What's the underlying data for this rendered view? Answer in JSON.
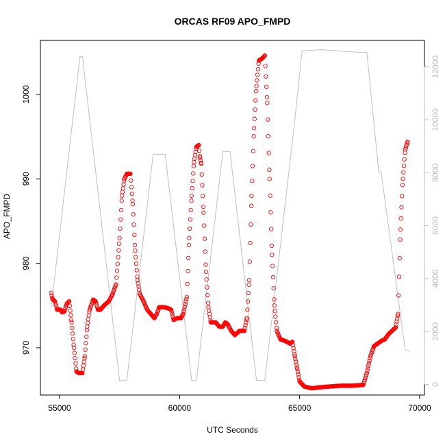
{
  "chart_data": {
    "type": "scatter",
    "title": "ORCAS RF09 APO_FMPD",
    "xlabel": "UTC Seconds",
    "ylabel": "APO_FMPD",
    "xlim": [
      54200,
      70200
    ],
    "ylim": [
      964.4,
      1006.4
    ],
    "y2lim": [
      -400,
      13000
    ],
    "x_ticks": [
      55000,
      60000,
      65000,
      70000
    ],
    "y_ticks": [
      970,
      980,
      990,
      1000
    ],
    "y2_ticks": [
      0,
      2000,
      4000,
      6000,
      8000,
      10000,
      12000
    ],
    "grid": false,
    "legend": "none",
    "colors": {
      "series_points": "#ff0000",
      "altitude_line": "#bebebe",
      "axes": "#000000",
      "right_axis": "#bebebe"
    },
    "series": [
      {
        "marker": "open-circle",
        "keypoints": [
          [
            54650,
            976.5
          ],
          [
            54700,
            975.8
          ],
          [
            54800,
            975.5
          ],
          [
            54900,
            974.5
          ],
          [
            55050,
            974.5
          ],
          [
            55100,
            974.2
          ],
          [
            55200,
            974.3
          ],
          [
            55300,
            975.2
          ],
          [
            55400,
            975.5
          ],
          [
            55500,
            973.0
          ],
          [
            55600,
            970.0
          ],
          [
            55700,
            967.2
          ],
          [
            55800,
            967.0
          ],
          [
            55950,
            967.0
          ],
          [
            56050,
            969.0
          ],
          [
            56150,
            972.5
          ],
          [
            56250,
            974.5
          ],
          [
            56400,
            975.7
          ],
          [
            56500,
            975.5
          ],
          [
            56600,
            974.5
          ],
          [
            56700,
            974.5
          ],
          [
            56850,
            975.0
          ],
          [
            57050,
            975.5
          ],
          [
            57200,
            976.3
          ],
          [
            57350,
            977.5
          ],
          [
            57500,
            983.0
          ],
          [
            57600,
            988.0
          ],
          [
            57700,
            990.0
          ],
          [
            57800,
            990.6
          ],
          [
            57950,
            990.6
          ],
          [
            58050,
            987.0
          ],
          [
            58150,
            981.5
          ],
          [
            58250,
            978.0
          ],
          [
            58350,
            976.3
          ],
          [
            58500,
            975.5
          ],
          [
            58650,
            974.5
          ],
          [
            58800,
            974.0
          ],
          [
            58950,
            973.5
          ],
          [
            59050,
            974.0
          ],
          [
            59150,
            974.8
          ],
          [
            59350,
            974.8
          ],
          [
            59500,
            974.7
          ],
          [
            59650,
            974.5
          ],
          [
            59750,
            973.3
          ],
          [
            59900,
            973.5
          ],
          [
            60050,
            973.5
          ],
          [
            60150,
            974.0
          ],
          [
            60300,
            976.0
          ],
          [
            60400,
            983.0
          ],
          [
            60500,
            988.0
          ],
          [
            60600,
            992.0
          ],
          [
            60700,
            993.8
          ],
          [
            60800,
            994.0
          ],
          [
            60850,
            992.5
          ],
          [
            60900,
            991.8
          ],
          [
            61000,
            986.0
          ],
          [
            61100,
            979.0
          ],
          [
            61200,
            974.8
          ],
          [
            61300,
            973.0
          ],
          [
            61500,
            973.0
          ],
          [
            61650,
            972.5
          ],
          [
            61800,
            972.5
          ],
          [
            61900,
            973.0
          ],
          [
            62000,
            972.8
          ],
          [
            62150,
            972.0
          ],
          [
            62300,
            971.5
          ],
          [
            62500,
            972.0
          ],
          [
            62700,
            972.0
          ],
          [
            62800,
            973.5
          ],
          [
            62900,
            978.0
          ],
          [
            63000,
            988.0
          ],
          [
            63100,
            996.0
          ],
          [
            63200,
            1001.0
          ],
          [
            63300,
            1004.0
          ],
          [
            63450,
            1004.3
          ],
          [
            63550,
            1004.6
          ],
          [
            63650,
            999.0
          ],
          [
            63750,
            990.0
          ],
          [
            63850,
            981.0
          ],
          [
            63950,
            975.0
          ],
          [
            64050,
            972.0
          ],
          [
            64200,
            971.0
          ],
          [
            64400,
            970.8
          ],
          [
            64600,
            970.5
          ],
          [
            64700,
            970.7
          ],
          [
            64800,
            969.0
          ],
          [
            64900,
            967.5
          ],
          [
            65000,
            966.0
          ],
          [
            65200,
            965.4
          ],
          [
            65500,
            965.2
          ],
          [
            65800,
            965.3
          ],
          [
            66200,
            965.4
          ],
          [
            66700,
            965.5
          ],
          [
            67200,
            965.5
          ],
          [
            67650,
            965.6
          ],
          [
            67800,
            967.0
          ],
          [
            67950,
            969.0
          ],
          [
            68100,
            970.2
          ],
          [
            68250,
            970.5
          ],
          [
            68400,
            970.8
          ],
          [
            68550,
            971.0
          ],
          [
            68700,
            971.6
          ],
          [
            68850,
            972.0
          ],
          [
            69000,
            972.4
          ],
          [
            69100,
            974.0
          ],
          [
            69200,
            984.0
          ],
          [
            69300,
            990.0
          ],
          [
            69400,
            993.5
          ],
          [
            69500,
            994.4
          ]
        ]
      },
      {
        "axis": "right",
        "line": true,
        "points": [
          [
            54650,
            2900
          ],
          [
            55850,
            12400
          ],
          [
            55950,
            12400
          ],
          [
            57500,
            150
          ],
          [
            57800,
            150
          ],
          [
            58900,
            8700
          ],
          [
            59400,
            8700
          ],
          [
            60500,
            150
          ],
          [
            60700,
            150
          ],
          [
            61800,
            8800
          ],
          [
            62100,
            8800
          ],
          [
            63200,
            150
          ],
          [
            63550,
            150
          ],
          [
            64800,
            10000
          ],
          [
            65100,
            12600
          ],
          [
            65900,
            12650
          ],
          [
            67400,
            12550
          ],
          [
            67800,
            12550
          ],
          [
            68300,
            8000
          ],
          [
            68400,
            8000
          ],
          [
            69400,
            1300
          ],
          [
            69600,
            1250
          ]
        ]
      }
    ]
  }
}
